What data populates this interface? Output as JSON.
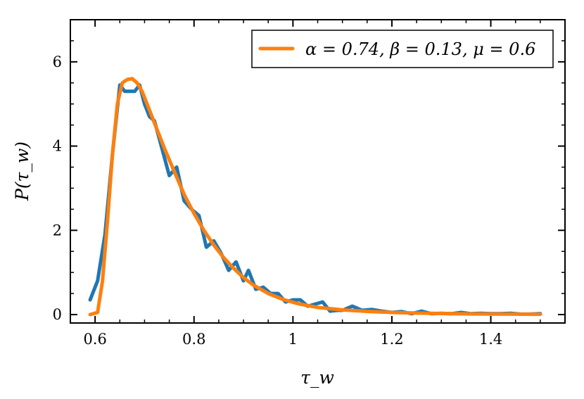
{
  "chart_data": {
    "type": "line",
    "xlabel": "τ_w",
    "ylabel": "P(τ_w)",
    "xlim": [
      0.55,
      1.55
    ],
    "ylim": [
      -0.2,
      7.0
    ],
    "xticks": [
      0.6,
      0.8,
      1.0,
      1.2,
      1.4
    ],
    "yticks": [
      0,
      2,
      4,
      6
    ],
    "grid": false,
    "legend_position": "top-right",
    "series": [
      {
        "name": "",
        "color": "#1f77b4",
        "x": [
          0.59,
          0.605,
          0.62,
          0.635,
          0.65,
          0.66,
          0.67,
          0.68,
          0.69,
          0.7,
          0.71,
          0.72,
          0.735,
          0.75,
          0.765,
          0.78,
          0.795,
          0.81,
          0.825,
          0.84,
          0.855,
          0.87,
          0.885,
          0.9,
          0.91,
          0.925,
          0.94,
          0.955,
          0.97,
          0.985,
          1.0,
          1.015,
          1.03,
          1.045,
          1.06,
          1.075,
          1.09,
          1.1,
          1.12,
          1.14,
          1.16,
          1.18,
          1.2,
          1.22,
          1.24,
          1.26,
          1.28,
          1.3,
          1.32,
          1.34,
          1.36,
          1.38,
          1.4,
          1.42,
          1.44,
          1.46,
          1.48,
          1.5
        ],
        "y": [
          0.35,
          0.8,
          1.9,
          3.8,
          5.45,
          5.3,
          5.3,
          5.3,
          5.45,
          5.0,
          4.7,
          4.6,
          3.95,
          3.3,
          3.5,
          2.7,
          2.5,
          2.35,
          1.6,
          1.75,
          1.45,
          1.05,
          1.25,
          0.8,
          1.05,
          0.6,
          0.65,
          0.5,
          0.5,
          0.3,
          0.35,
          0.35,
          0.2,
          0.25,
          0.3,
          0.08,
          0.1,
          0.1,
          0.2,
          0.1,
          0.12,
          0.08,
          0.05,
          0.07,
          0.02,
          0.08,
          0.02,
          0.03,
          0.02,
          0.05,
          0.02,
          0.03,
          0.02,
          0.02,
          0.03,
          0.01,
          0.01,
          0.02
        ]
      },
      {
        "name": "α = 0.74, β = 0.13, μ = 0.6",
        "color": "#ff7f0e",
        "x": [
          0.59,
          0.605,
          0.615,
          0.625,
          0.635,
          0.645,
          0.655,
          0.665,
          0.675,
          0.685,
          0.695,
          0.705,
          0.72,
          0.74,
          0.76,
          0.78,
          0.8,
          0.82,
          0.84,
          0.86,
          0.88,
          0.9,
          0.92,
          0.95,
          0.98,
          1.01,
          1.05,
          1.1,
          1.15,
          1.2,
          1.25,
          1.3,
          1.35,
          1.4,
          1.45,
          1.5
        ],
        "y": [
          0.0,
          0.05,
          0.8,
          2.2,
          3.8,
          5.0,
          5.5,
          5.58,
          5.6,
          5.5,
          5.3,
          5.0,
          4.55,
          3.95,
          3.4,
          2.85,
          2.4,
          2.0,
          1.65,
          1.35,
          1.1,
          0.88,
          0.7,
          0.5,
          0.36,
          0.26,
          0.17,
          0.11,
          0.075,
          0.05,
          0.035,
          0.025,
          0.018,
          0.013,
          0.01,
          0.007
        ]
      }
    ]
  }
}
